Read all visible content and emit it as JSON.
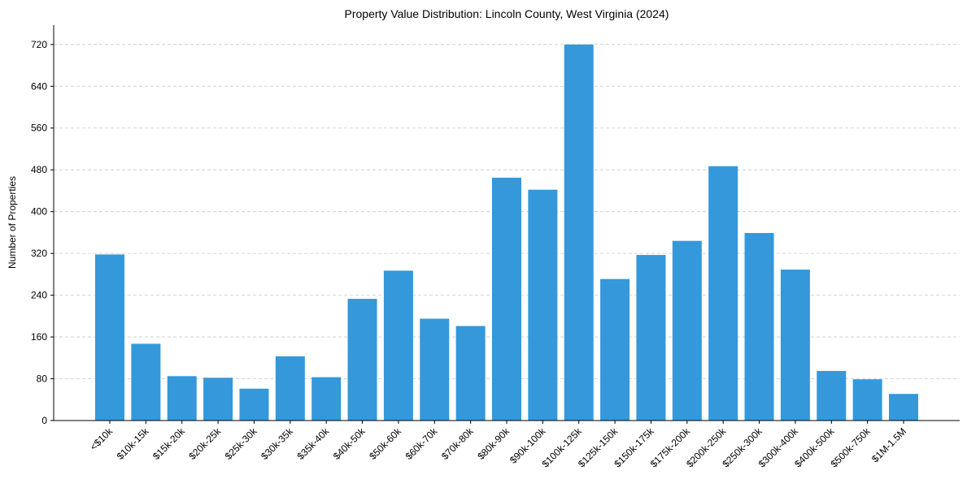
{
  "chart_data": {
    "type": "bar",
    "title": "Property Value Distribution: Lincoln County, West Virginia (2024)",
    "xlabel": "",
    "ylabel": "Number of Properties",
    "ylim": [
      0,
      757
    ],
    "yticks": [
      0,
      80,
      160,
      240,
      320,
      400,
      480,
      560,
      640,
      720
    ],
    "grid": "y-dashed",
    "categories": [
      "<$10k",
      "$10k-15k",
      "$15k-20k",
      "$20k-25k",
      "$25k-30k",
      "$30k-35k",
      "$35k-40k",
      "$40k-50k",
      "$50k-60k",
      "$60k-70k",
      "$70k-80k",
      "$80k-90k",
      "$90k-100k",
      "$100k-125k",
      "$125k-150k",
      "$150k-175k",
      "$175k-200k",
      "$200k-250k",
      "$250k-300k",
      "$300k-400k",
      "$400k-500k",
      "$500k-750k",
      "$1M-1.5M"
    ],
    "values": [
      318,
      147,
      85,
      82,
      61,
      123,
      83,
      233,
      287,
      195,
      181,
      465,
      442,
      720,
      271,
      317,
      344,
      487,
      359,
      289,
      95,
      79,
      51
    ],
    "color": "#3498db"
  }
}
